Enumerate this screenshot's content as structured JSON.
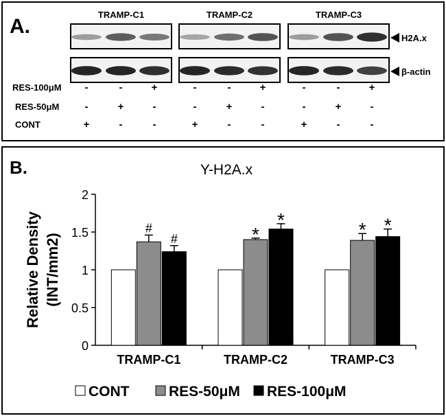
{
  "panel_a": {
    "label": "A.",
    "groups": [
      "TRAMP-C1",
      "TRAMP-C2",
      "TRAMP-C3"
    ],
    "bands": [
      "H2A.x",
      "β-actin"
    ],
    "treatments": [
      {
        "name": "RES-100μM",
        "signs": [
          "-",
          "-",
          "+",
          "-",
          "-",
          "+",
          "-",
          "-",
          "+"
        ]
      },
      {
        "name": "RES-50μM",
        "signs": [
          "-",
          "+",
          "-",
          "-",
          "+",
          "-",
          "-",
          "+",
          "-"
        ]
      },
      {
        "name": "CONT",
        "signs": [
          "+",
          "-",
          "-",
          "+",
          "-",
          "-",
          "+",
          "-",
          "-"
        ]
      }
    ],
    "intensity": {
      "H2A.x": [
        0.3,
        0.65,
        0.5,
        0.25,
        0.55,
        0.7,
        0.3,
        0.7,
        0.9
      ],
      "β-actin": [
        0.95,
        0.95,
        0.9,
        0.95,
        0.92,
        0.88,
        0.95,
        0.92,
        0.8
      ]
    }
  },
  "panel_b": {
    "label": "B."
  },
  "chart_data": {
    "type": "bar",
    "title": "Y-H2A.x",
    "ylabel": "Relative Density (INT/mm2)",
    "ylim": [
      0,
      2
    ],
    "yticks": [
      0,
      0.5,
      1,
      1.5,
      2
    ],
    "categories": [
      "TRAMP-C1",
      "TRAMP-C2",
      "TRAMP-C3"
    ],
    "series": [
      {
        "name": "CONT",
        "values": [
          1.0,
          1.0,
          1.0
        ],
        "errors": [
          0,
          0,
          0
        ],
        "color": "#ffffff",
        "marks": [
          "",
          "",
          ""
        ]
      },
      {
        "name": "RES-50μM",
        "values": [
          1.37,
          1.4,
          1.39
        ],
        "errors": [
          0.09,
          0.02,
          0.09
        ],
        "color": "#8c8c8c",
        "marks": [
          "#",
          "*",
          "*"
        ]
      },
      {
        "name": "RES-100μM",
        "values": [
          1.24,
          1.54,
          1.44
        ],
        "errors": [
          0.08,
          0.07,
          0.1
        ],
        "color": "#000000",
        "marks": [
          "#",
          "*",
          "*"
        ]
      }
    ],
    "legend": "bottom",
    "grid": false
  }
}
